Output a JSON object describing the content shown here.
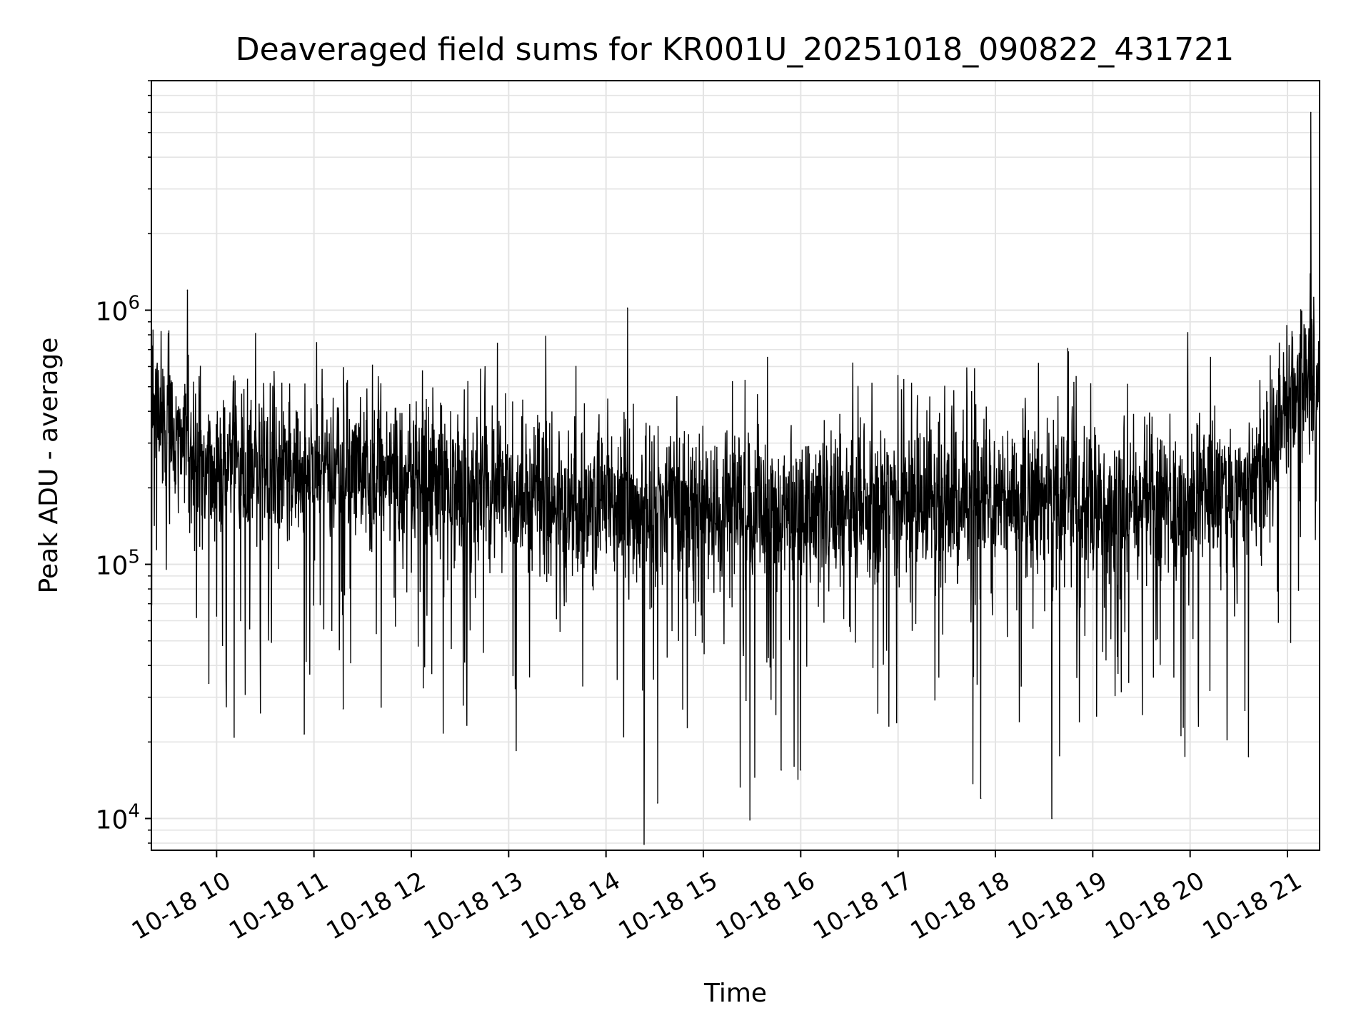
{
  "chart_data": {
    "type": "line",
    "title": "Deaveraged field sums for KR001U_20251018_090822_431721",
    "xlabel": "Time",
    "ylabel": "Peak ADU - average",
    "yscale": "log",
    "ylim": [
      7500,
      8000000
    ],
    "xlim_hours": [
      9.33,
      21.33
    ],
    "grid": true,
    "line_color": "#000000",
    "x_tick_hours": [
      10,
      11,
      12,
      13,
      14,
      15,
      16,
      17,
      18,
      19,
      20,
      21
    ],
    "x_tick_labels": [
      "10-18 10",
      "10-18 11",
      "10-18 12",
      "10-18 13",
      "10-18 14",
      "10-18 15",
      "10-18 16",
      "10-18 17",
      "10-18 18",
      "10-18 19",
      "10-18 20",
      "10-18 21"
    ],
    "y_tick_values": [
      10000,
      100000,
      1000000
    ],
    "y_tick_bases": [
      "10",
      "10",
      "10"
    ],
    "y_tick_exponents": [
      "4",
      "5",
      "6"
    ],
    "series": [
      {
        "name": "Deaveraged field sum",
        "baseline": [
          [
            9.33,
            430000
          ],
          [
            9.5,
            330000
          ],
          [
            9.7,
            270000
          ],
          [
            10.0,
            245000
          ],
          [
            10.5,
            240000
          ],
          [
            11.0,
            235000
          ],
          [
            11.5,
            225000
          ],
          [
            12.0,
            215000
          ],
          [
            12.5,
            195000
          ],
          [
            13.0,
            185000
          ],
          [
            13.5,
            175000
          ],
          [
            14.0,
            170000
          ],
          [
            14.5,
            165000
          ],
          [
            15.0,
            160000
          ],
          [
            15.5,
            160000
          ],
          [
            16.0,
            160000
          ],
          [
            16.5,
            170000
          ],
          [
            17.0,
            180000
          ],
          [
            17.5,
            185000
          ],
          [
            18.0,
            180000
          ],
          [
            18.5,
            175000
          ],
          [
            19.0,
            170000
          ],
          [
            19.5,
            170000
          ],
          [
            20.0,
            175000
          ],
          [
            20.5,
            195000
          ],
          [
            20.8,
            260000
          ],
          [
            21.0,
            430000
          ],
          [
            21.15,
            500000
          ],
          [
            21.33,
            600000
          ]
        ],
        "notable_points": [
          {
            "t": 9.7,
            "v": 1200000
          },
          {
            "t": 9.92,
            "v": 34000
          },
          {
            "t": 10.45,
            "v": 26000
          },
          {
            "t": 10.9,
            "v": 21500
          },
          {
            "t": 11.3,
            "v": 27000
          },
          {
            "t": 14.22,
            "v": 1020000
          },
          {
            "t": 14.53,
            "v": 11500
          },
          {
            "t": 15.8,
            "v": 15500
          },
          {
            "t": 16.0,
            "v": 15500
          },
          {
            "t": 17.85,
            "v": 12000
          },
          {
            "t": 18.58,
            "v": 10000
          },
          {
            "t": 20.6,
            "v": 17500
          },
          {
            "t": 21.24,
            "v": 6000000
          }
        ]
      }
    ]
  }
}
